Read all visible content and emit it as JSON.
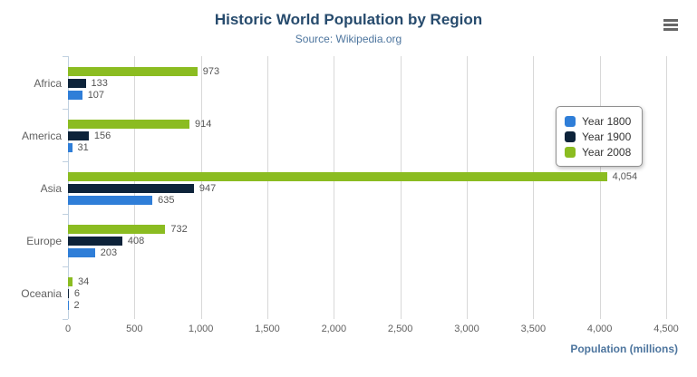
{
  "chart_data": {
    "type": "bar",
    "orientation": "horizontal",
    "title": "Historic World Population by Region",
    "subtitle": "Source: Wikipedia.org",
    "categories": [
      "Africa",
      "America",
      "Asia",
      "Europe",
      "Oceania"
    ],
    "series": [
      {
        "name": "Year 1800",
        "color": "#2f7ed8",
        "values": [
          107,
          31,
          635,
          203,
          2
        ]
      },
      {
        "name": "Year 1900",
        "color": "#0d233a",
        "values": [
          133,
          156,
          947,
          408,
          6
        ]
      },
      {
        "name": "Year 2008",
        "color": "#8bbc21",
        "values": [
          973,
          914,
          4054,
          732,
          34
        ]
      }
    ],
    "bar_draw_order": "last_series_on_top",
    "value_labels": true,
    "xlabel": "Population (millions)",
    "ylabel": "",
    "xlim": [
      0,
      4500
    ],
    "x_ticks": [
      0,
      500,
      1000,
      1500,
      2000,
      2500,
      3000,
      3500,
      4000,
      4500
    ],
    "x_tick_labels": [
      "0",
      "500",
      "1,000",
      "1,500",
      "2,000",
      "2,500",
      "3,000",
      "3,500",
      "4,000",
      "4,500"
    ],
    "grid": true,
    "legend_position": "right",
    "colors": {
      "title": "#274b6d",
      "subtitle": "#4d759e",
      "axis_title": "#4d759e",
      "axis_labels": "#606060",
      "gridline": "#d8d8d8",
      "axis_line": "#c0d0e0",
      "menu_icon": "#666666"
    }
  },
  "menu": {
    "icon": "hamburger"
  }
}
